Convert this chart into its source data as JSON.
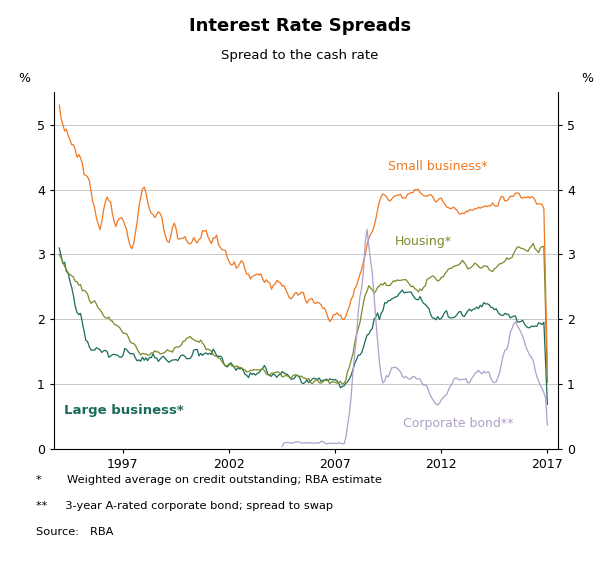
{
  "title": "Interest Rate Spreads",
  "subtitle": "Spread to the cash rate",
  "ylabel_left": "%",
  "ylabel_right": "%",
  "ylim": [
    0,
    5.5
  ],
  "yticks": [
    0,
    1,
    2,
    3,
    4,
    5
  ],
  "xlim_start": 1993.75,
  "xlim_end": 2017.5,
  "xticks": [
    1997,
    2002,
    2007,
    2012,
    2017
  ],
  "colors": {
    "small_business": "#F07820",
    "housing": "#7A8B2A",
    "large_business": "#1B6B5A",
    "corporate_bond": "#B09FCA"
  },
  "labels": {
    "small_business": "Small business*",
    "housing": "Housing*",
    "large_business": "Large business*",
    "corporate_bond": "Corporate bond**"
  },
  "footnote1": "*       Weighted average on credit outstanding; RBA estimate",
  "footnote2": "**     3-year A-rated corporate bond; spread to swap",
  "footnote3": "Source:   RBA",
  "background_color": "#ffffff",
  "grid_color": "#c8c8c8"
}
